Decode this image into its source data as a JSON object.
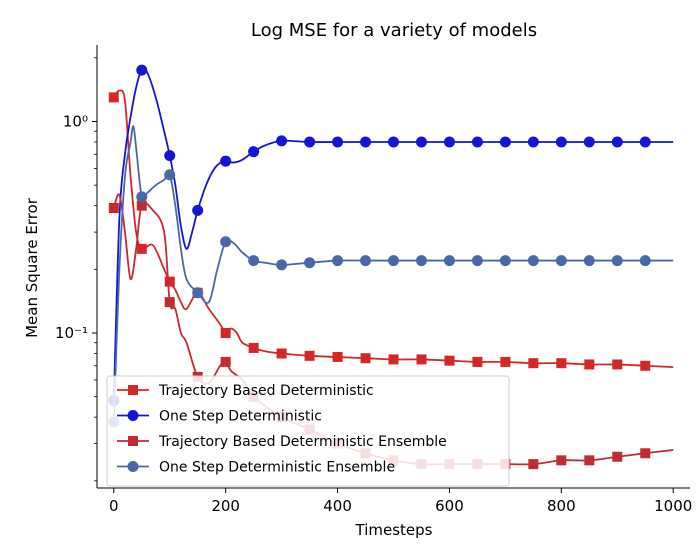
{
  "chart_data": {
    "type": "line",
    "title": "Log MSE for a variety of models",
    "xlabel": "Timesteps",
    "ylabel": "Mean Square Error",
    "yscale": "log",
    "xlim": [
      -30,
      1030
    ],
    "ylim": [
      0.0185,
      2.3
    ],
    "xticks": [
      0,
      200,
      400,
      600,
      800,
      1000
    ],
    "xtick_labels": [
      "0",
      "200",
      "400",
      "600",
      "800",
      "1000"
    ],
    "yticks": [
      1.0,
      0.1
    ],
    "ytick_labels": [
      "10⁰",
      "10⁻¹"
    ],
    "grid": false,
    "legend_position": "bottom-left",
    "series": [
      {
        "name": "Trajectory Based Deterministic",
        "color": "#d62728",
        "marker": "square",
        "x": [
          0,
          50,
          100,
          150,
          200,
          250,
          300,
          350,
          400,
          450,
          500,
          550,
          600,
          650,
          700,
          750,
          800,
          850,
          900,
          950
        ],
        "y": [
          1.3,
          0.25,
          0.175,
          0.155,
          0.1,
          0.085,
          0.08,
          0.078,
          0.077,
          0.076,
          0.075,
          0.075,
          0.074,
          0.073,
          0.073,
          0.072,
          0.072,
          0.071,
          0.071,
          0.07
        ],
        "line_x": [
          0,
          10,
          20,
          30,
          40,
          50,
          70,
          90,
          100,
          110,
          120,
          130,
          150,
          170,
          190,
          200,
          210,
          220,
          230,
          250,
          270,
          300,
          350,
          400,
          450,
          500,
          550,
          600,
          650,
          700,
          750,
          800,
          850,
          900,
          950,
          1000
        ],
        "line_y": [
          1.3,
          1.4,
          1.25,
          0.55,
          0.3,
          0.25,
          0.26,
          0.2,
          0.175,
          0.16,
          0.14,
          0.13,
          0.155,
          0.13,
          0.11,
          0.1,
          0.105,
          0.1,
          0.09,
          0.085,
          0.082,
          0.08,
          0.078,
          0.077,
          0.076,
          0.075,
          0.075,
          0.074,
          0.073,
          0.073,
          0.072,
          0.072,
          0.071,
          0.071,
          0.07,
          0.069
        ]
      },
      {
        "name": "One Step Deterministic",
        "color": "#1515d6",
        "marker": "circle",
        "x": [
          0,
          50,
          100,
          150,
          200,
          250,
          300,
          350,
          400,
          450,
          500,
          550,
          600,
          650,
          700,
          750,
          800,
          850,
          900,
          950
        ],
        "y": [
          0.048,
          1.75,
          0.69,
          0.38,
          0.65,
          0.72,
          0.81,
          0.8,
          0.8,
          0.8,
          0.8,
          0.8,
          0.8,
          0.8,
          0.8,
          0.8,
          0.8,
          0.8,
          0.8,
          0.8
        ],
        "line_x": [
          0,
          10,
          20,
          30,
          40,
          50,
          60,
          75,
          90,
          100,
          110,
          120,
          130,
          140,
          150,
          165,
          180,
          195,
          200,
          215,
          230,
          250,
          270,
          300,
          350,
          400,
          450,
          500,
          550,
          600,
          650,
          700,
          750,
          800,
          850,
          900,
          950,
          1000
        ],
        "line_y": [
          0.048,
          0.35,
          0.7,
          1.05,
          1.45,
          1.75,
          1.7,
          1.3,
          0.9,
          0.69,
          0.5,
          0.32,
          0.25,
          0.3,
          0.38,
          0.5,
          0.6,
          0.65,
          0.65,
          0.64,
          0.66,
          0.72,
          0.77,
          0.81,
          0.8,
          0.8,
          0.8,
          0.8,
          0.8,
          0.8,
          0.8,
          0.8,
          0.8,
          0.8,
          0.8,
          0.8,
          0.8,
          0.8
        ]
      },
      {
        "name": "Trajectory Based Deterministic Ensemble",
        "color": "#c42a33",
        "marker": "square",
        "x": [
          0,
          50,
          100,
          150,
          200,
          250,
          300,
          350,
          400,
          450,
          500,
          550,
          600,
          650,
          700,
          750,
          800,
          850,
          900,
          950
        ],
        "y": [
          0.39,
          0.4,
          0.14,
          0.062,
          0.073,
          0.05,
          0.04,
          0.035,
          0.03,
          0.027,
          0.025,
          0.024,
          0.024,
          0.024,
          0.024,
          0.024,
          0.025,
          0.025,
          0.026,
          0.027
        ],
        "line_x": [
          0,
          10,
          20,
          30,
          40,
          50,
          70,
          90,
          100,
          110,
          120,
          130,
          150,
          170,
          190,
          200,
          210,
          230,
          250,
          300,
          350,
          400,
          450,
          500,
          550,
          600,
          650,
          700,
          750,
          800,
          850,
          900,
          950,
          1000
        ],
        "line_y": [
          0.39,
          0.45,
          0.3,
          0.18,
          0.25,
          0.4,
          0.38,
          0.3,
          0.14,
          0.13,
          0.1,
          0.09,
          0.062,
          0.058,
          0.07,
          0.073,
          0.066,
          0.06,
          0.05,
          0.04,
          0.035,
          0.03,
          0.027,
          0.025,
          0.024,
          0.024,
          0.024,
          0.024,
          0.024,
          0.025,
          0.025,
          0.026,
          0.027,
          0.028
        ]
      },
      {
        "name": "One Step Deterministic Ensemble",
        "color": "#4a68a8",
        "marker": "circle",
        "x": [
          0,
          50,
          100,
          150,
          200,
          250,
          300,
          350,
          400,
          450,
          500,
          550,
          600,
          650,
          700,
          750,
          800,
          850,
          900,
          950
        ],
        "y": [
          0.038,
          0.44,
          0.56,
          0.155,
          0.27,
          0.22,
          0.21,
          0.215,
          0.22,
          0.22,
          0.22,
          0.22,
          0.22,
          0.22,
          0.22,
          0.22,
          0.22,
          0.22,
          0.22,
          0.22
        ],
        "line_x": [
          0,
          10,
          20,
          30,
          35,
          40,
          50,
          60,
          75,
          90,
          100,
          110,
          120,
          130,
          150,
          170,
          185,
          200,
          215,
          230,
          250,
          270,
          300,
          350,
          400,
          450,
          500,
          550,
          600,
          650,
          700,
          750,
          800,
          850,
          900,
          950,
          1000
        ],
        "line_y": [
          0.038,
          0.2,
          0.55,
          0.8,
          0.95,
          0.75,
          0.44,
          0.46,
          0.5,
          0.53,
          0.56,
          0.4,
          0.25,
          0.18,
          0.155,
          0.14,
          0.2,
          0.27,
          0.265,
          0.24,
          0.22,
          0.215,
          0.21,
          0.215,
          0.22,
          0.22,
          0.22,
          0.22,
          0.22,
          0.22,
          0.22,
          0.22,
          0.22,
          0.22,
          0.22,
          0.22,
          0.22
        ]
      }
    ]
  }
}
